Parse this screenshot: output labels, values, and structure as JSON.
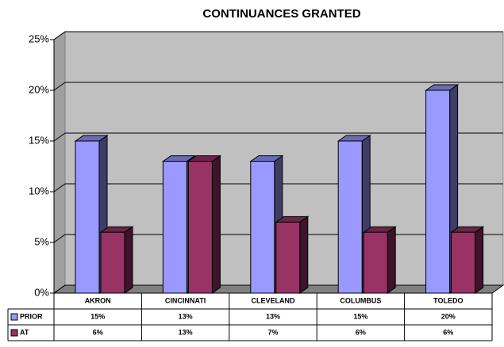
{
  "chart_data": {
    "type": "bar3d",
    "title": "CONTINUANCES GRANTED",
    "categories": [
      "AKRON",
      "CINCINNATI",
      "CLEVELAND",
      "COLUMBUS",
      "TOLEDO"
    ],
    "series": [
      {
        "name": "PRIOR",
        "color": "#9999ff",
        "values": [
          15,
          13,
          13,
          15,
          20
        ],
        "value_labels": [
          "15%",
          "13%",
          "13%",
          "15%",
          "20%"
        ]
      },
      {
        "name": "AT",
        "color": "#993366",
        "values": [
          6,
          13,
          7,
          6,
          6
        ],
        "value_labels": [
          "6%",
          "13%",
          "7%",
          "6%",
          "6%"
        ]
      }
    ],
    "ylim": [
      0,
      25
    ],
    "yticks": [
      {
        "value": 0,
        "label": "0%"
      },
      {
        "value": 5,
        "label": "5%"
      },
      {
        "value": 10,
        "label": "10%"
      },
      {
        "value": 15,
        "label": "15%"
      },
      {
        "value": 20,
        "label": "20%"
      },
      {
        "value": 25,
        "label": "25%"
      }
    ],
    "grid": true
  }
}
